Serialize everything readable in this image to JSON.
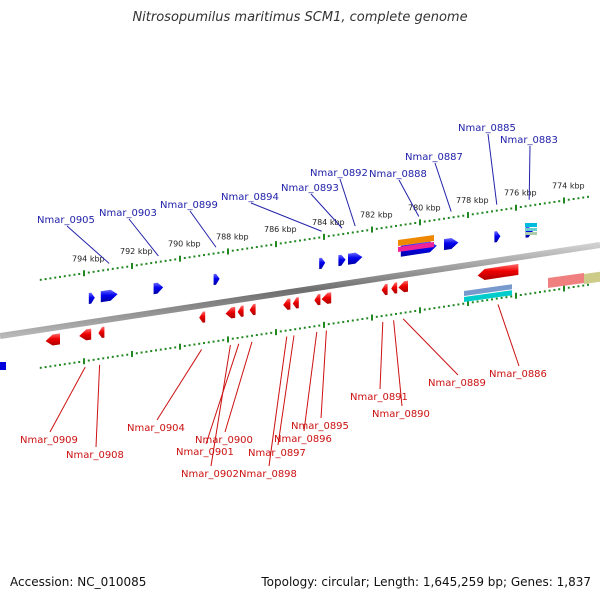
{
  "title": "Nitrosopumilus maritimus SCM1, complete genome",
  "footer": {
    "accession": "Accession: NC_010085",
    "topology": "Topology: circular; Length: 1,645,259 bp; Genes: 1,837"
  },
  "colors": {
    "forward_gene": "#0000dd",
    "reverse_gene": "#dd0000",
    "forward_label": "#2222aa",
    "reverse_label": "#cc1111",
    "ticks": "#228822",
    "backbone": "#888888"
  },
  "ticks": [
    {
      "label": "774 kbp",
      "pos": 774
    },
    {
      "label": "776 kbp",
      "pos": 776
    },
    {
      "label": "778 kbp",
      "pos": 778
    },
    {
      "label": "780 kbp",
      "pos": 780
    },
    {
      "label": "782 kbp",
      "pos": 782
    },
    {
      "label": "784 kbp",
      "pos": 784
    },
    {
      "label": "786 kbp",
      "pos": 786
    },
    {
      "label": "788 kbp",
      "pos": 788
    },
    {
      "label": "790 kbp",
      "pos": 790
    },
    {
      "label": "792 kbp",
      "pos": 792
    },
    {
      "label": "794 kbp",
      "pos": 794
    }
  ],
  "forward_genes": [
    {
      "label": "Nmar_0883",
      "start": 775.3,
      "end": 775.6
    },
    {
      "label": "Nmar_0885",
      "start": 776.7,
      "end": 776.9
    },
    {
      "label": "Nmar_0887",
      "start": 778.4,
      "end": 779.0
    },
    {
      "label": "Nmar_0888",
      "start": 779.3,
      "end": 780.8
    },
    {
      "label": "Nmar_0892",
      "start": 782.4,
      "end": 783.0
    },
    {
      "label": "Nmar_0893",
      "start": 783.1,
      "end": 783.4
    },
    {
      "label": "Nmar_0894",
      "start": 784.0,
      "end": 784.2
    },
    {
      "label": "Nmar_0899",
      "start": 788.4,
      "end": 788.6
    },
    {
      "label": "Nmar_0903",
      "start": 790.7,
      "end": 791.1
    },
    {
      "label": "Nmar_0905",
      "start": 792.6,
      "end": 793.3
    },
    {
      "label": "",
      "start": 793.6,
      "end": 793.8
    }
  ],
  "reverse_genes": [
    {
      "label": "Nmar_0886",
      "start": 775.9,
      "end": 777.6
    },
    {
      "label": "Nmar_0889",
      "start": 780.5,
      "end": 780.9
    },
    {
      "label": "Nmar_0890",
      "start": 781.0,
      "end": 781.2
    },
    {
      "label": "Nmar_0891",
      "start": 781.5,
      "end": 781.6
    },
    {
      "label": "Nmar_0895",
      "start": 783.7,
      "end": 784.1
    },
    {
      "label": "Nmar_0896",
      "start": 784.2,
      "end": 784.4
    },
    {
      "label": "Nmar_0897",
      "start": 785.2,
      "end": 785.3
    },
    {
      "label": "Nmar_0898",
      "start": 785.4,
      "end": 785.7
    },
    {
      "label": "Nmar_0900",
      "start": 786.9,
      "end": 787.1
    },
    {
      "label": "Nmar_0901",
      "start": 787.5,
      "end": 787.6
    },
    {
      "label": "Nmar_0902",
      "start": 787.7,
      "end": 788.1
    },
    {
      "label": "Nmar_0904",
      "start": 789.0,
      "end": 789.2
    },
    {
      "label": "Nmar_0908",
      "start": 793.3,
      "end": 793.4
    },
    {
      "label": "Nmar_0909",
      "start": 793.7,
      "end": 794.2
    },
    {
      "label": "",
      "start": 795.0,
      "end": 795.6
    }
  ]
}
